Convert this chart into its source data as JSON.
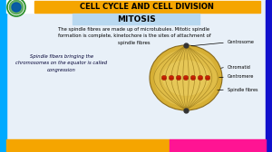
{
  "title_bar_text": "CELL CYCLE AND CELL DIVISION",
  "title_bar_bg": "#F5A500",
  "title_bar_text_color": "#000000",
  "subtitle_text": "MITOSIS",
  "subtitle_bg": "#B8D8F0",
  "subtitle_text_color": "#000000",
  "main_bg": "#E8F0F8",
  "body_text1": "The spindle fibres are made up of microtubules. Mitotic spindle\nformation is complete, kinetochore is the sites of attachment of\nspindle fibres",
  "body_text2": "Spindle fibers bringing the\nchromosomes on the equator is called\ncongression",
  "labels": [
    "Centrosome",
    "Chromatid",
    "Centromere",
    "Spindle fibres"
  ],
  "left_bar_color": "#00AAFF",
  "right_bar_color": "#1010CC",
  "bottom_left_color": "#F5A500",
  "bottom_right_color": "#FF1493",
  "logo_bg": "#FFFFFF",
  "logo_green": "#228B22",
  "logo_blue": "#0055AA",
  "cell_outer_color": "#D4A820",
  "cell_mid_color": "#E8C855",
  "cell_light_color": "#F0D870",
  "spindle_color": "#A08020",
  "chrom_color": "#CC2200",
  "chrom_edge": "#881100",
  "centrosome_color": "#333333"
}
